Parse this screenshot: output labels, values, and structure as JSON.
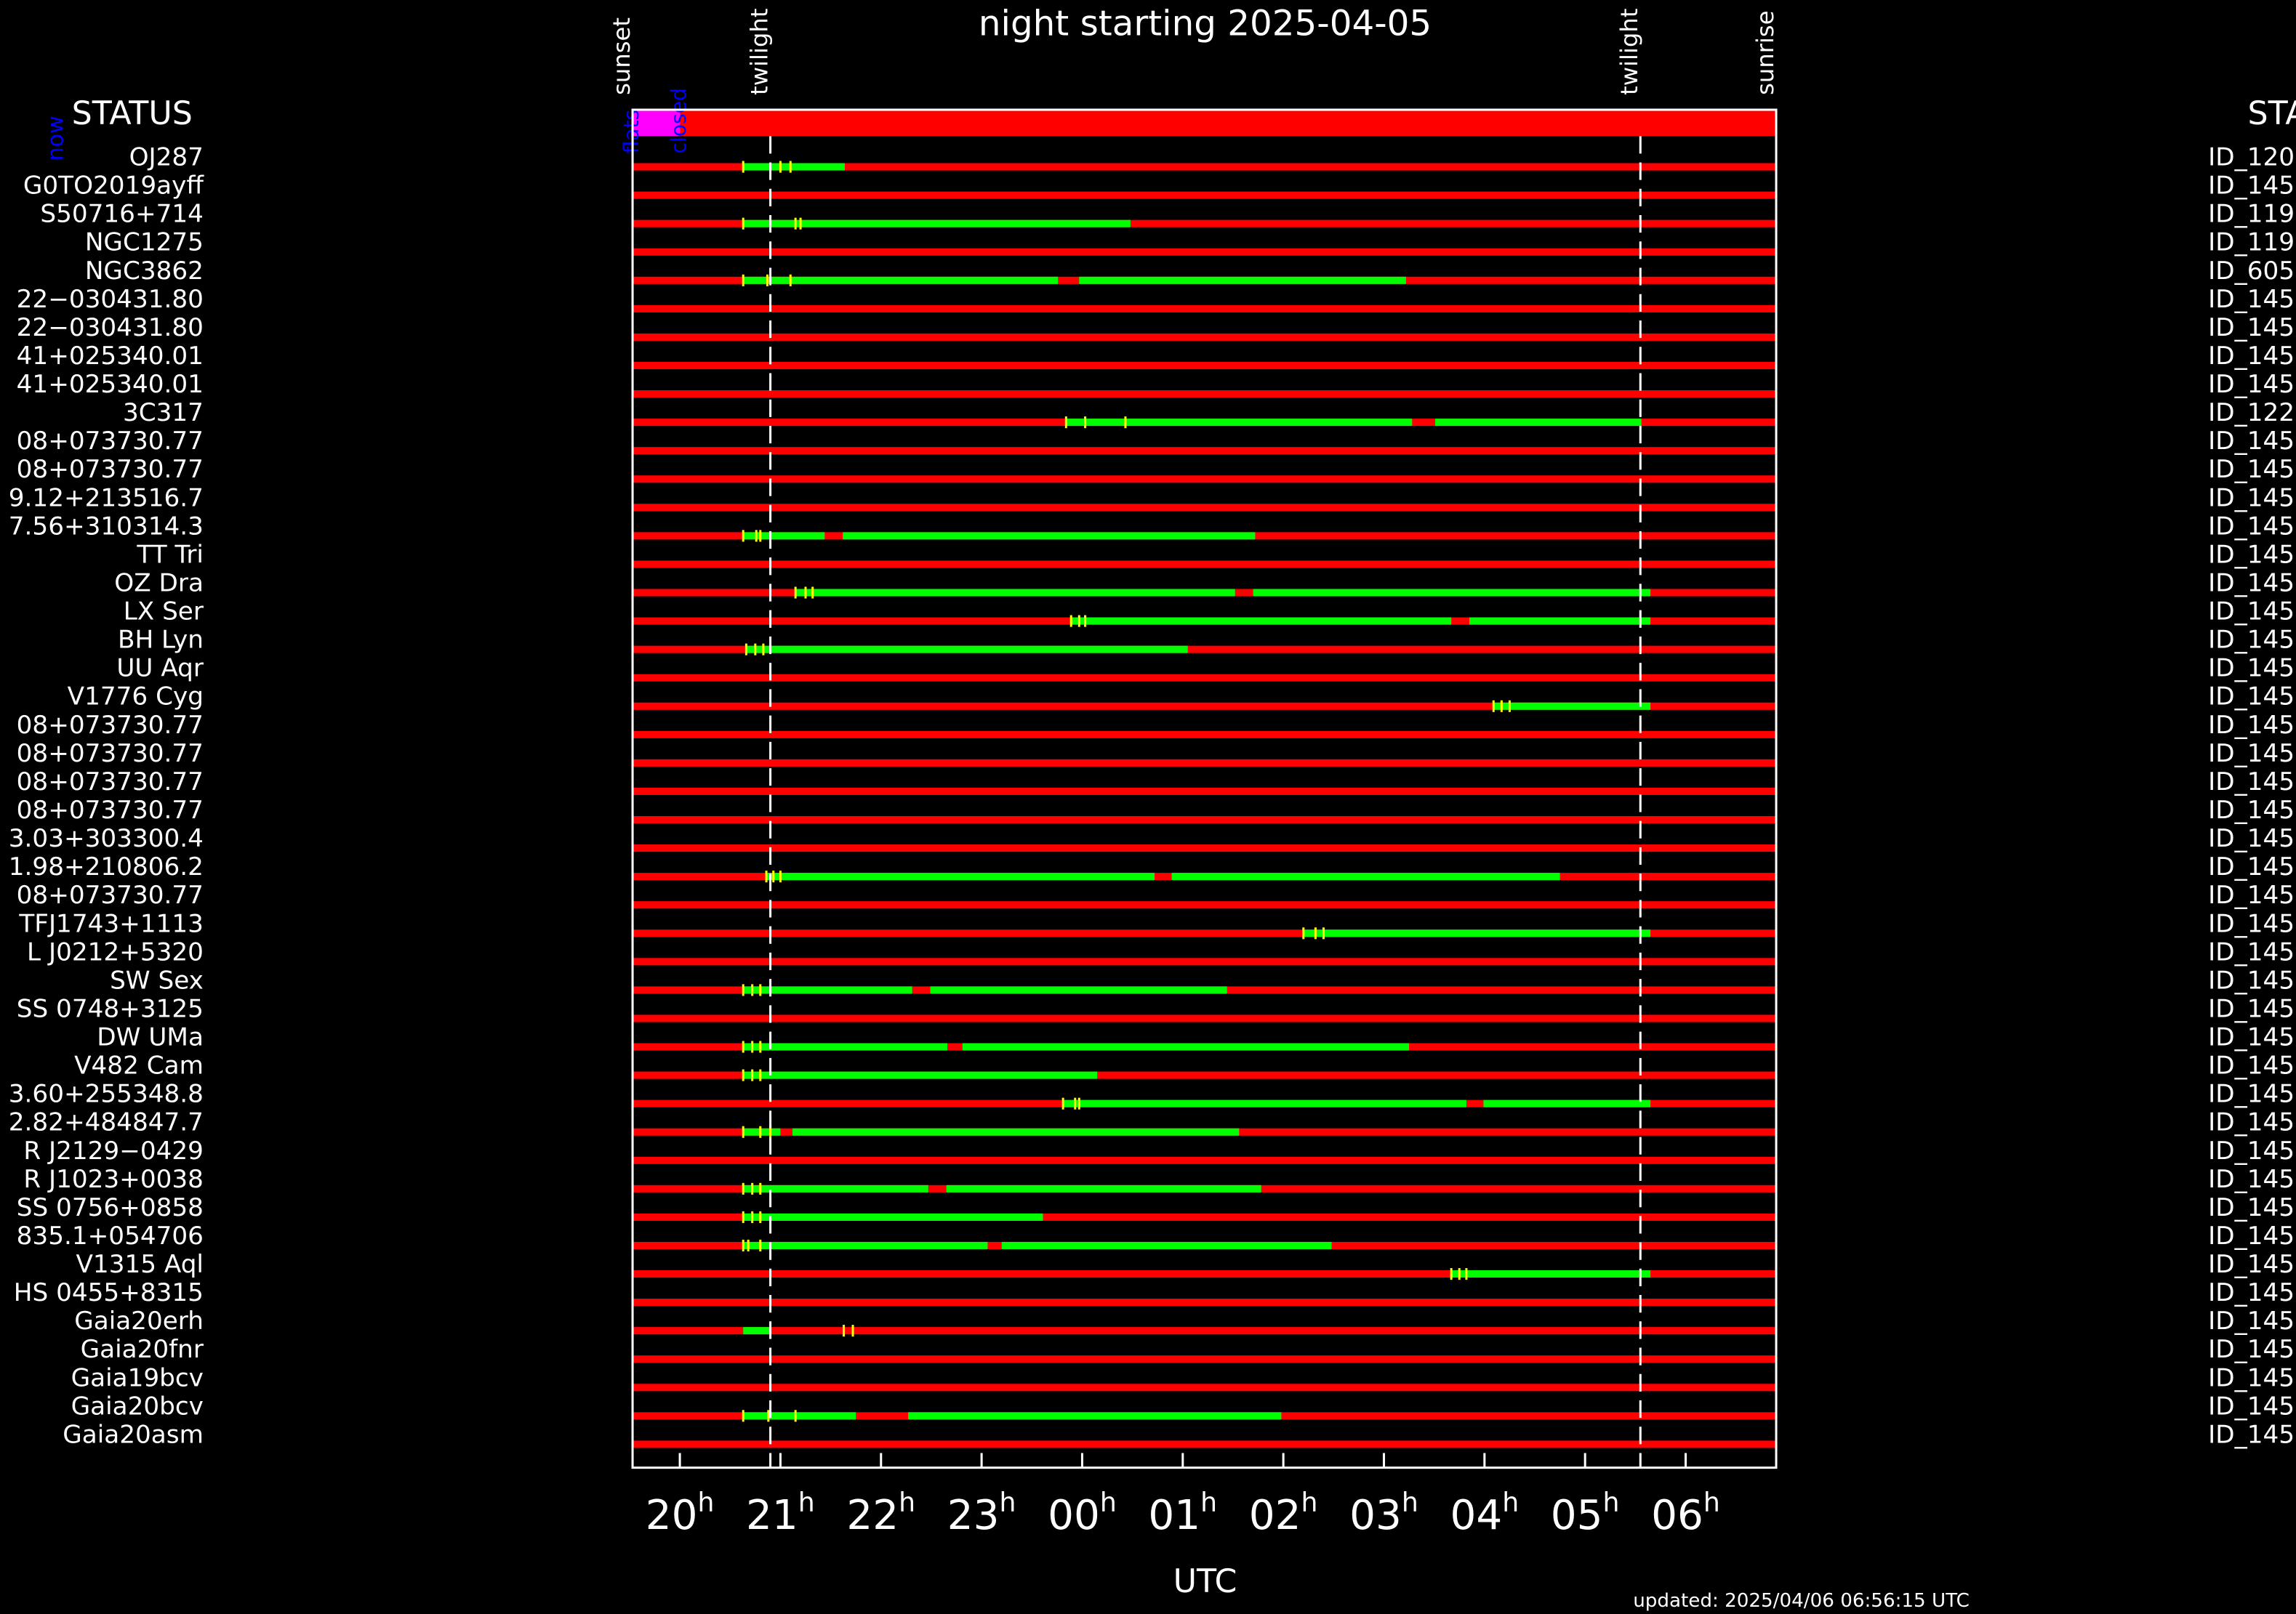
{
  "chart_data": {
    "type": "schedule",
    "title": "night starting 2025-04-05",
    "x_label": "UTC",
    "left_header": "STATUS",
    "right_header": "STAT",
    "now_label": "now",
    "footer": "updated: 2025/04/06 06:56:15 UTC",
    "xlim": [
      19.53,
      30.9
    ],
    "xticks": [
      {
        "value": 20,
        "label": "20"
      },
      {
        "value": 21,
        "label": "21"
      },
      {
        "value": 22,
        "label": "22"
      },
      {
        "value": 23,
        "label": "23"
      },
      {
        "value": 24,
        "label": "00"
      },
      {
        "value": 25,
        "label": "01"
      },
      {
        "value": 26,
        "label": "02"
      },
      {
        "value": 27,
        "label": "03"
      },
      {
        "value": 28,
        "label": "04"
      },
      {
        "value": 29,
        "label": "05"
      },
      {
        "value": 30,
        "label": "06"
      }
    ],
    "tick_suffix": "h",
    "events": [
      {
        "name": "sunset",
        "value": 19.53
      },
      {
        "name": "twilight",
        "value": 20.9
      },
      {
        "name": "twilight",
        "value": 29.55
      },
      {
        "name": "sunrise",
        "value": 30.9
      }
    ],
    "status_bar": [
      {
        "name": "flats",
        "start": 19.53,
        "end": 20.0,
        "color": "#ff00ff"
      },
      {
        "name": "closed",
        "start": 20.0,
        "end": 30.9,
        "color": "#ff0000"
      }
    ],
    "bar_color": "#ff0000",
    "segment_color": "#00ff00",
    "marker_color": "#ffff00",
    "rows": [
      {
        "name": "OJ287",
        "id": "ID_120",
        "segments": [
          [
            20.63,
            21.64
          ]
        ],
        "markers": [
          20.63,
          21.0,
          21.1
        ]
      },
      {
        "name": "G0TO2019ayff",
        "id": "ID_145",
        "segments": [],
        "markers": []
      },
      {
        "name": "S50716+714",
        "id": "ID_119",
        "segments": [
          [
            20.63,
            24.48
          ]
        ],
        "markers": [
          20.63,
          21.15,
          21.2
        ]
      },
      {
        "name": "NGC1275",
        "id": "ID_119",
        "segments": [],
        "markers": []
      },
      {
        "name": "NGC3862",
        "id": "ID_605",
        "segments": [
          [
            20.63,
            23.76
          ],
          [
            23.97,
            27.22
          ]
        ],
        "markers": [
          20.63,
          20.87,
          21.1
        ]
      },
      {
        "name": "22−030431.80",
        "id": "ID_145",
        "segments": [],
        "markers": []
      },
      {
        "name": "22−030431.80",
        "id": "ID_145",
        "segments": [],
        "markers": []
      },
      {
        "name": "41+025340.01",
        "id": "ID_145",
        "segments": [],
        "markers": []
      },
      {
        "name": "41+025340.01",
        "id": "ID_145",
        "segments": [],
        "markers": []
      },
      {
        "name": "3C317",
        "id": "ID_122",
        "segments": [
          [
            23.84,
            27.28
          ],
          [
            27.51,
            29.56
          ]
        ],
        "markers": [
          23.84,
          24.03,
          24.43
        ]
      },
      {
        "name": "08+073730.77",
        "id": "ID_145",
        "segments": [],
        "markers": []
      },
      {
        "name": "08+073730.77",
        "id": "ID_145",
        "segments": [],
        "markers": []
      },
      {
        "name": "9.12+213516.7",
        "id": "ID_145",
        "segments": [],
        "markers": []
      },
      {
        "name": "7.56+310314.3",
        "id": "ID_145",
        "segments": [
          [
            20.63,
            21.44
          ],
          [
            21.62,
            25.72
          ]
        ],
        "markers": [
          20.63,
          20.76,
          20.8
        ]
      },
      {
        "name": "TT Tri",
        "id": "ID_145",
        "segments": [],
        "markers": []
      },
      {
        "name": "OZ Dra",
        "id": "ID_145",
        "segments": [
          [
            21.15,
            25.52
          ],
          [
            25.7,
            29.65
          ]
        ],
        "markers": [
          21.15,
          21.25,
          21.32
        ]
      },
      {
        "name": "LX Ser",
        "id": "ID_145",
        "segments": [
          [
            23.89,
            27.67
          ],
          [
            27.85,
            29.65
          ]
        ],
        "markers": [
          23.89,
          23.97,
          24.03
        ]
      },
      {
        "name": "BH Lyn",
        "id": "ID_145",
        "segments": [
          [
            20.66,
            25.05
          ]
        ],
        "markers": [
          20.66,
          20.75,
          20.83
        ]
      },
      {
        "name": "UU Aqr",
        "id": "ID_145",
        "segments": [],
        "markers": []
      },
      {
        "name": "V1776 Cyg",
        "id": "ID_145",
        "segments": [
          [
            28.09,
            29.65
          ]
        ],
        "markers": [
          28.09,
          28.17,
          28.25
        ]
      },
      {
        "name": "08+073730.77",
        "id": "ID_145",
        "segments": [],
        "markers": []
      },
      {
        "name": "08+073730.77",
        "id": "ID_145",
        "segments": [],
        "markers": []
      },
      {
        "name": "08+073730.77",
        "id": "ID_145",
        "segments": [],
        "markers": []
      },
      {
        "name": "08+073730.77",
        "id": "ID_145",
        "segments": [],
        "markers": []
      },
      {
        "name": "3.03+303300.4",
        "id": "ID_145",
        "segments": [],
        "markers": []
      },
      {
        "name": "1.98+210806.2",
        "id": "ID_145",
        "segments": [
          [
            20.86,
            24.72
          ],
          [
            24.89,
            28.75
          ]
        ],
        "markers": [
          20.86,
          20.93,
          21.0
        ]
      },
      {
        "name": "08+073730.77",
        "id": "ID_145",
        "segments": [],
        "markers": []
      },
      {
        "name": "TFJ1743+1113",
        "id": "ID_145",
        "segments": [
          [
            26.2,
            29.65
          ]
        ],
        "markers": [
          26.2,
          26.32,
          26.4
        ]
      },
      {
        "name": "L J0212+5320",
        "id": "ID_145",
        "segments": [],
        "markers": []
      },
      {
        "name": "SW Sex",
        "id": "ID_145",
        "segments": [
          [
            20.63,
            22.31
          ],
          [
            22.49,
            25.44
          ]
        ],
        "markers": [
          20.63,
          20.72,
          20.8
        ]
      },
      {
        "name": "SS 0748+3125",
        "id": "ID_145",
        "segments": [],
        "markers": []
      },
      {
        "name": "DW UMa",
        "id": "ID_145",
        "segments": [
          [
            20.63,
            22.66
          ],
          [
            22.81,
            27.25
          ]
        ],
        "markers": [
          20.63,
          20.72,
          20.8
        ]
      },
      {
        "name": "V482 Cam",
        "id": "ID_145",
        "segments": [
          [
            20.63,
            24.15
          ]
        ],
        "markers": [
          20.63,
          20.72,
          20.8
        ]
      },
      {
        "name": "3.60+255348.8",
        "id": "ID_145",
        "segments": [
          [
            23.81,
            27.82
          ],
          [
            27.99,
            29.65
          ]
        ],
        "markers": [
          23.81,
          23.93,
          23.97
        ]
      },
      {
        "name": "2.82+484847.7",
        "id": "ID_145",
        "segments": [
          [
            20.63,
            21.0
          ],
          [
            21.12,
            25.56
          ]
        ],
        "markers": [
          20.63,
          20.8,
          20.9
        ]
      },
      {
        "name": "R J2129−0429",
        "id": "ID_145",
        "segments": [],
        "markers": []
      },
      {
        "name": "R J1023+0038",
        "id": "ID_145",
        "segments": [
          [
            20.63,
            22.47
          ],
          [
            22.65,
            25.78
          ]
        ],
        "markers": [
          20.63,
          20.72,
          20.8
        ]
      },
      {
        "name": "SS 0756+0858",
        "id": "ID_145",
        "segments": [
          [
            20.63,
            23.61
          ]
        ],
        "markers": [
          20.63,
          20.72,
          20.8
        ]
      },
      {
        "name": "835.1+054706",
        "id": "ID_145",
        "segments": [
          [
            20.63,
            23.06
          ],
          [
            23.2,
            26.48
          ]
        ],
        "markers": [
          20.63,
          20.68,
          20.8
        ]
      },
      {
        "name": "V1315 Aql",
        "id": "ID_145",
        "segments": [
          [
            27.67,
            29.65
          ]
        ],
        "markers": [
          27.67,
          27.75,
          27.82
        ]
      },
      {
        "name": "HS 0455+8315",
        "id": "ID_145",
        "segments": [],
        "markers": []
      },
      {
        "name": "Gaia20erh",
        "id": "ID_145",
        "segments": [
          [
            20.63,
            20.89
          ]
        ],
        "markers": [
          21.63,
          21.72
        ]
      },
      {
        "name": "Gaia20fnr",
        "id": "ID_145",
        "segments": [],
        "markers": []
      },
      {
        "name": "Gaia19bcv",
        "id": "ID_145",
        "segments": [],
        "markers": []
      },
      {
        "name": "Gaia20bcv",
        "id": "ID_145",
        "segments": [
          [
            20.63,
            21.75
          ],
          [
            22.27,
            25.98
          ]
        ],
        "markers": [
          20.63,
          20.88,
          21.15
        ]
      },
      {
        "name": "Gaia20asm",
        "id": "ID_145",
        "segments": [],
        "markers": []
      }
    ]
  }
}
